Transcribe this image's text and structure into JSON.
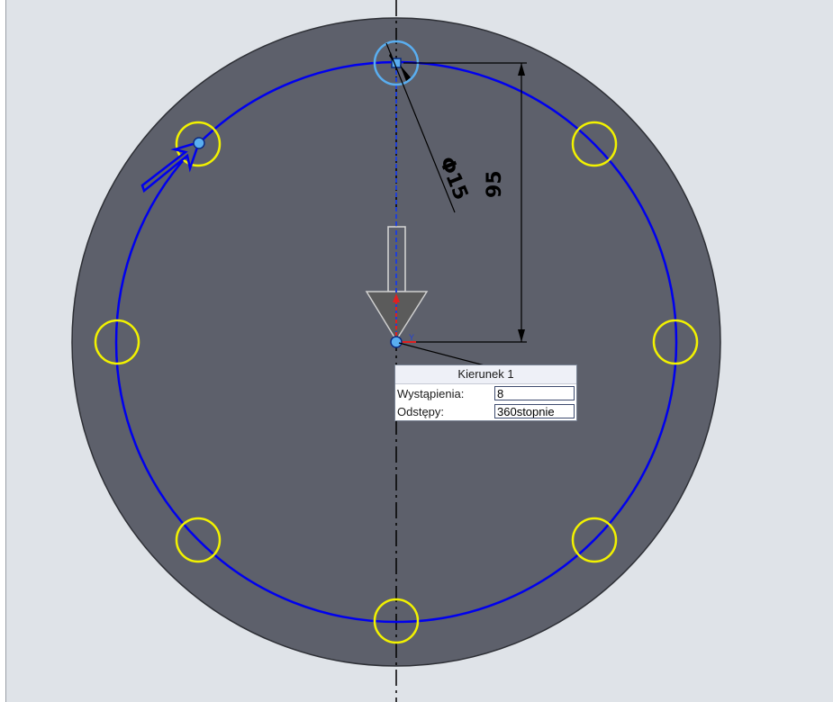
{
  "dimensions": {
    "diameter_label": "Φ15",
    "distance_label": "95"
  },
  "pattern_dialog": {
    "title": "Kierunek 1",
    "instances_label": "Wystąpienia:",
    "instances_value": "8",
    "spacing_label": "Odstępy:",
    "spacing_value": "360stopnie"
  },
  "colors": {
    "background": "#dfe3e8",
    "part_face": "#5d606b",
    "construction_circle": "#0000ee",
    "pattern_instances": "#f2f200",
    "selected_seed": "#5aaef0"
  }
}
